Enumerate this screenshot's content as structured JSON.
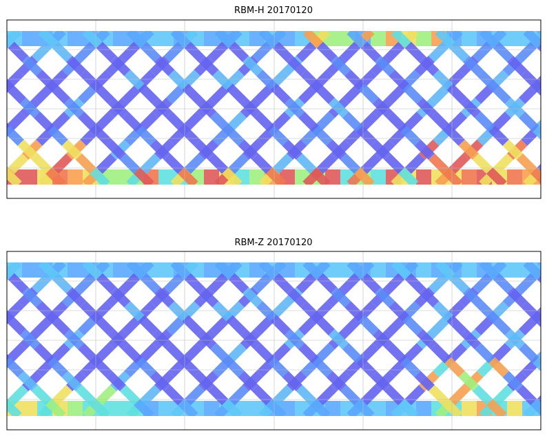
{
  "panels": [
    {
      "title": "RBM-H 20170120"
    },
    {
      "title": "RBM-Z 20170120"
    }
  ]
}
